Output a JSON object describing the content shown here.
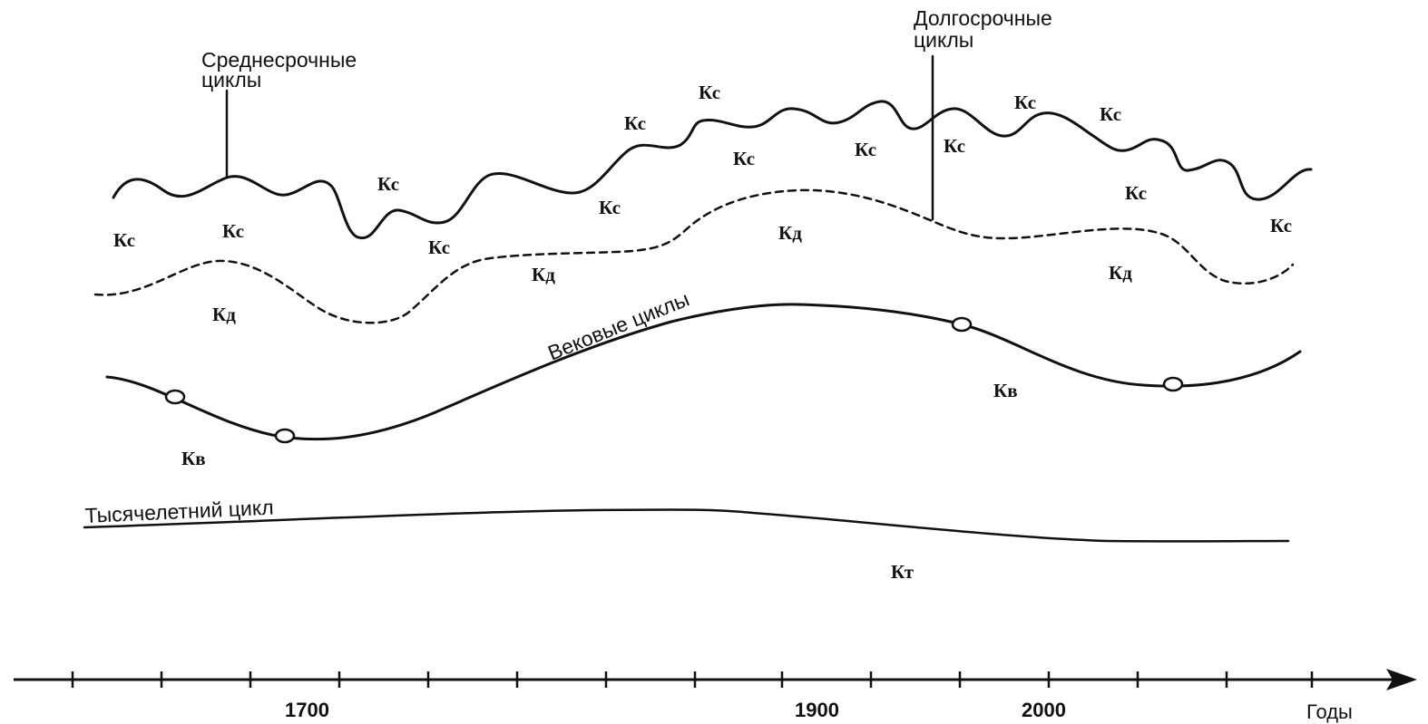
{
  "labels": {
    "medium_term": [
      "Среднесрочные",
      "циклы"
    ],
    "long_term": [
      "Долгосрочные",
      "циклы"
    ],
    "secular": "Вековые циклы",
    "millennial": "Тысячелетний цикл",
    "axis_unit": "Годы"
  },
  "axis": {
    "year_ticks": [
      "1700",
      "1900",
      "2000"
    ]
  },
  "cycle_marks": {
    "ks": "Кс",
    "kd": "Кд",
    "kv": "Кв",
    "kt": "Кт"
  }
}
